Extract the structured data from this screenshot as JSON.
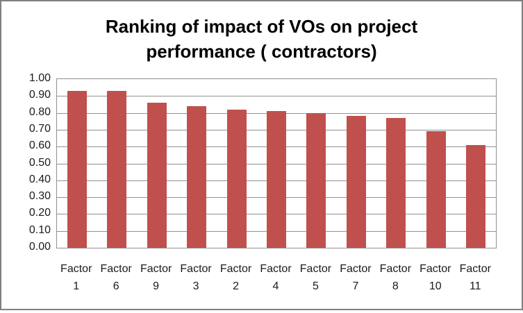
{
  "chart_data": {
    "type": "bar",
    "title": "Ranking of impact of VOs on project performance ( contractors)",
    "title_lines": [
      "Ranking of impact of VOs on project",
      "performance ( contractors)"
    ],
    "categories": [
      "Factor 1",
      "Factor 6",
      "Factor 9",
      "Factor 3",
      "Factor 2",
      "Factor 4",
      "Factor 5",
      "Factor 7",
      "Factor 8",
      "Factor 10",
      "Factor 11"
    ],
    "values": [
      0.93,
      0.93,
      0.86,
      0.84,
      0.82,
      0.81,
      0.8,
      0.78,
      0.77,
      0.69,
      0.61
    ],
    "xlabel": "",
    "ylabel": "",
    "ylim": [
      0,
      1
    ],
    "ytick_step": 0.1,
    "ytick_labels": [
      "0.00",
      "0.10",
      "0.20",
      "0.30",
      "0.40",
      "0.50",
      "0.60",
      "0.70",
      "0.80",
      "0.90",
      "1.00"
    ],
    "grid": true,
    "legend": "none",
    "colors": {
      "bar": "#C0504D",
      "gridline": "#909090",
      "axis": "#909090",
      "frame_border": "#808080",
      "title_text": "#000000",
      "tick_text": "#1A1A1A",
      "background": "#FFFFFF"
    }
  }
}
